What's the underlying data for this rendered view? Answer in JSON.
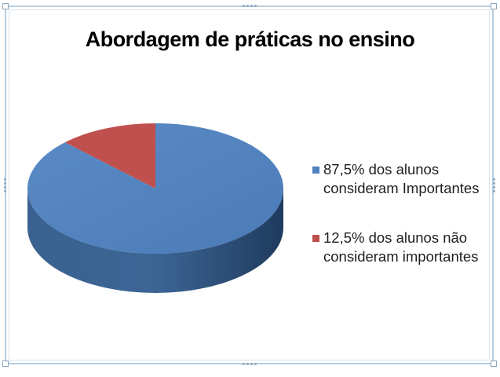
{
  "chart_data": {
    "type": "pie",
    "title": "Abordagem de práticas no ensino",
    "slices": [
      {
        "label": "87,5% dos alunos consideram Importantes",
        "value": 87.5,
        "color": "#4f81bd",
        "line1": "87,5% dos alunos",
        "line2": "consideram Importantes"
      },
      {
        "label": "12,5% dos alunos não consideram importantes",
        "value": 12.5,
        "color": "#c0504d",
        "line1": "12,5% dos alunos não",
        "line2": "consideram importantes"
      }
    ],
    "legend_position": "right",
    "style": "3d"
  }
}
